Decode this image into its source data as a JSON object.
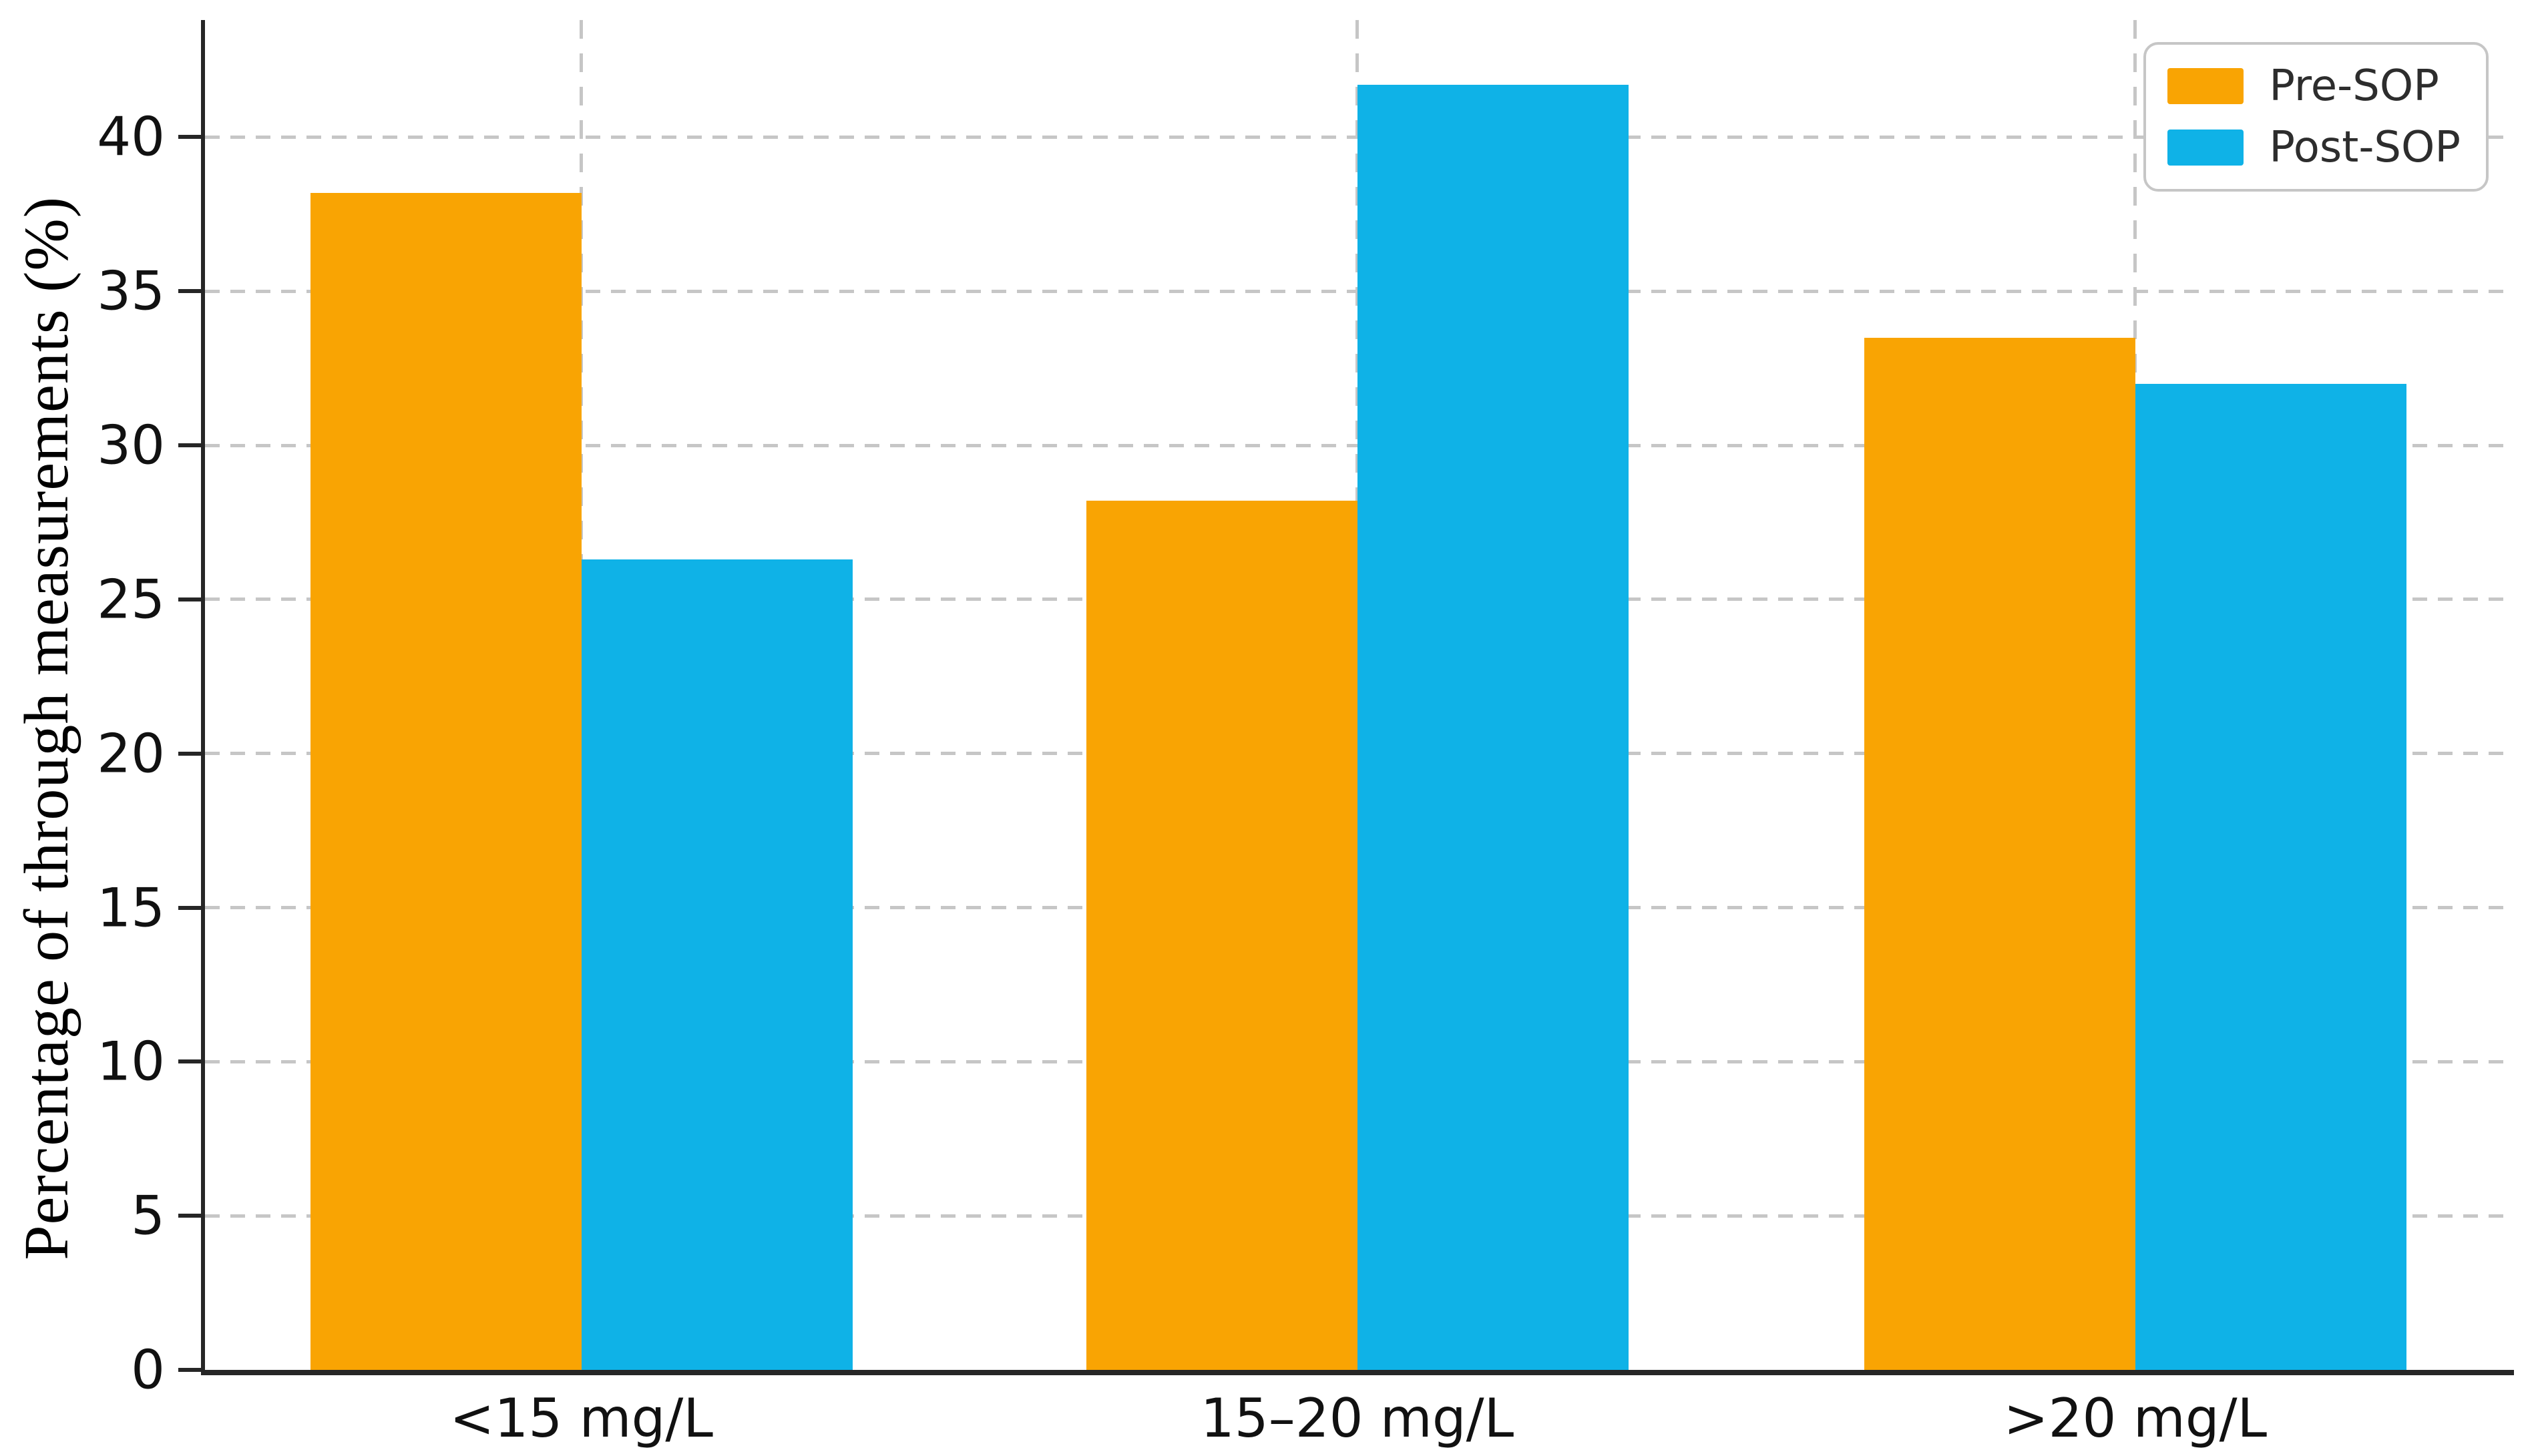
{
  "chart_data": {
    "type": "bar",
    "categories": [
      "<15 mg/L",
      "15–20 mg/L",
      ">20 mg/L"
    ],
    "series": [
      {
        "name": "Pre-SOP",
        "color": "#F9A403",
        "values": [
          38.2,
          28.2,
          33.5
        ]
      },
      {
        "name": "Post-SOP",
        "color": "#0FB2E7",
        "values": [
          26.3,
          41.7,
          32.0
        ]
      }
    ],
    "title": "",
    "xlabel": "",
    "ylabel": "Percentage of through measurements (%)",
    "yticks": [
      0,
      5,
      10,
      15,
      20,
      25,
      30,
      35,
      40
    ],
    "ylim": [
      0,
      43.8
    ],
    "grid": "dashed gray horizontal gridlines at each ytick and vertical gridlines at category centers",
    "legend_position": "upper right"
  },
  "colors": {
    "pre_sop": "#F9A403",
    "post_sop": "#0FB2E7",
    "gridline": "#c6c6c6",
    "axis": "#262626",
    "tick_text": "#111111",
    "legend_text": "#2d2d2d",
    "legend_border": "#c6c6c6"
  }
}
